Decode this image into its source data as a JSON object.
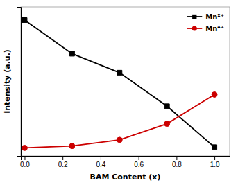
{
  "chart_data": {
    "type": "line",
    "x_label": "BAM Content (x)",
    "y_label": "Intensity (a.u.)",
    "x": [
      0.0,
      0.25,
      0.5,
      0.75,
      1.0
    ],
    "series": [
      {
        "name": "Mn²⁺",
        "color": "#000000",
        "marker": "square",
        "values": [
          0.93,
          0.7,
          0.57,
          0.34,
          0.06
        ]
      },
      {
        "name": "Mn⁴⁺",
        "color": "#cc0000",
        "marker": "circle",
        "values": [
          0.055,
          0.068,
          0.11,
          0.22,
          0.42
        ]
      }
    ],
    "xlim": [
      -0.02,
      1.08
    ],
    "ylim": [
      0.0,
      1.02
    ],
    "xticks": [
      {
        "value": 0.0,
        "label": "0.0"
      },
      0.2,
      0.4,
      0.6,
      0.8,
      {
        "value": 1.0,
        "label": "1.0"
      }
    ],
    "yticks": [],
    "tick_labels": "x",
    "legend": "upper right",
    "grid": false
  }
}
